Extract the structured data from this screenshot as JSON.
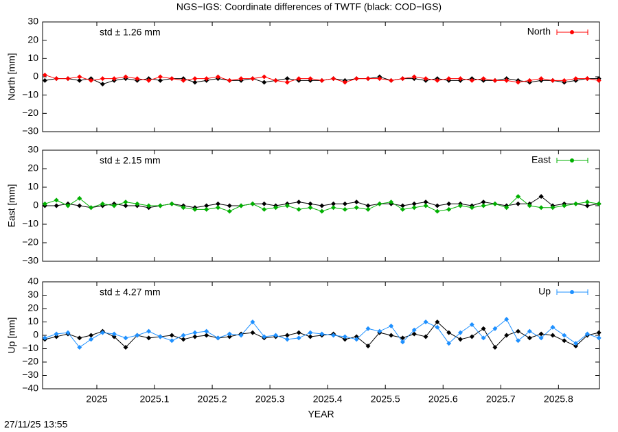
{
  "title": "NGS−IGS: Coordinate differences of TWTF (black: COD−IGS)",
  "timestamp": "27/11/25 13:55",
  "chart_data": [
    {
      "type": "line",
      "ylabel": "North [mm]",
      "annotation": "std ± 1.26 mm",
      "legend": "upper right",
      "show_xticklabels": false,
      "xlim": [
        2024.906,
        2025.871
      ],
      "xticks": [
        2025,
        2025.1,
        2025.2,
        2025.3,
        2025.4,
        2025.5,
        2025.6,
        2025.7,
        2025.8
      ],
      "ylim": [
        -30,
        30
      ],
      "yticks": [
        {
          "value": -30,
          "label": "−30"
        },
        {
          "value": -20,
          "label": "−20"
        },
        {
          "value": -10,
          "label": "−10"
        },
        0,
        10,
        20,
        30
      ],
      "x": [
        2024.91,
        2024.93,
        2024.95,
        2024.97,
        2024.99,
        2025.01,
        2025.03,
        2025.05,
        2025.07,
        2025.09,
        2025.11,
        2025.13,
        2025.15,
        2025.17,
        2025.19,
        2025.21,
        2025.23,
        2025.25,
        2025.27,
        2025.29,
        2025.31,
        2025.33,
        2025.35,
        2025.37,
        2025.39,
        2025.41,
        2025.43,
        2025.45,
        2025.47,
        2025.49,
        2025.51,
        2025.53,
        2025.55,
        2025.57,
        2025.59,
        2025.61,
        2025.63,
        2025.65,
        2025.67,
        2025.69,
        2025.71,
        2025.73,
        2025.75,
        2025.77,
        2025.79,
        2025.81,
        2025.83,
        2025.85,
        2025.87
      ],
      "series": [
        {
          "color": "#000000",
          "marker": "diamond",
          "values": [
            -2,
            -1,
            -1,
            -2,
            -1,
            -4,
            -2,
            -1,
            -2,
            -1,
            -2,
            -1,
            -1,
            -3,
            -2,
            -1,
            -2,
            -2,
            -1,
            -3,
            -2,
            -1,
            -2,
            -2,
            -2,
            -1,
            -2,
            -1,
            -1,
            0,
            -2,
            -1,
            -1,
            -2,
            -1,
            -2,
            -2,
            -1,
            -2,
            -2,
            -1,
            -2,
            -3,
            -2,
            -2,
            -3,
            -2,
            -1,
            -1
          ]
        },
        {
          "name": "North",
          "color": "#ff0000",
          "marker": "diamond",
          "values": [
            1,
            -1,
            -1,
            0,
            -2,
            -1,
            -1,
            0,
            -1,
            -2,
            0,
            -1,
            -2,
            -1,
            -1,
            0,
            -2,
            -1,
            -1,
            0,
            -2,
            -3,
            -1,
            -1,
            -2,
            -1,
            -3,
            -1,
            -1,
            -1,
            -2,
            -1,
            0,
            -1,
            -2,
            -1,
            -1,
            -2,
            -1,
            -2,
            -2,
            -3,
            -2,
            -1,
            -2,
            -2,
            -1,
            -1,
            -2
          ]
        }
      ]
    },
    {
      "type": "line",
      "ylabel": "East [mm]",
      "annotation": "std ± 2.15 mm",
      "legend": "upper right",
      "show_xticklabels": false,
      "xlim": [
        2024.906,
        2025.871
      ],
      "xticks": [
        2025,
        2025.1,
        2025.2,
        2025.3,
        2025.4,
        2025.5,
        2025.6,
        2025.7,
        2025.8
      ],
      "ylim": [
        -30,
        30
      ],
      "yticks": [
        {
          "value": -30,
          "label": "−30"
        },
        {
          "value": -20,
          "label": "−20"
        },
        {
          "value": -10,
          "label": "−10"
        },
        0,
        10,
        20,
        30
      ],
      "x": [
        2024.91,
        2024.93,
        2024.95,
        2024.97,
        2024.99,
        2025.01,
        2025.03,
        2025.05,
        2025.07,
        2025.09,
        2025.11,
        2025.13,
        2025.15,
        2025.17,
        2025.19,
        2025.21,
        2025.23,
        2025.25,
        2025.27,
        2025.29,
        2025.31,
        2025.33,
        2025.35,
        2025.37,
        2025.39,
        2025.41,
        2025.43,
        2025.45,
        2025.47,
        2025.49,
        2025.51,
        2025.53,
        2025.55,
        2025.57,
        2025.59,
        2025.61,
        2025.63,
        2025.65,
        2025.67,
        2025.69,
        2025.71,
        2025.73,
        2025.75,
        2025.77,
        2025.79,
        2025.81,
        2025.83,
        2025.85,
        2025.87
      ],
      "series": [
        {
          "color": "#000000",
          "marker": "diamond",
          "values": [
            0,
            0,
            1,
            0,
            -1,
            0,
            1,
            0,
            0,
            -1,
            0,
            1,
            0,
            -1,
            0,
            1,
            0,
            0,
            1,
            1,
            0,
            1,
            2,
            1,
            0,
            1,
            1,
            2,
            0,
            1,
            1,
            0,
            1,
            2,
            0,
            1,
            1,
            0,
            2,
            1,
            0,
            1,
            1,
            5,
            0,
            1,
            1,
            0,
            1
          ]
        },
        {
          "name": "East",
          "color": "#00b000",
          "marker": "diamond",
          "values": [
            1,
            3,
            0,
            4,
            -1,
            1,
            0,
            2,
            1,
            0,
            0,
            1,
            -1,
            -2,
            -2,
            -1,
            -3,
            0,
            1,
            -2,
            -1,
            0,
            -2,
            -1,
            -3,
            -1,
            -2,
            -1,
            -2,
            1,
            2,
            -2,
            -1,
            0,
            -3,
            -2,
            0,
            -1,
            0,
            1,
            -1,
            5,
            0,
            -1,
            -1,
            0,
            1,
            2,
            1
          ]
        }
      ]
    },
    {
      "type": "line",
      "ylabel": "Up [mm]",
      "annotation": "std ± 4.27 mm",
      "legend": "upper right",
      "show_xticklabels": true,
      "xlabel": "YEAR",
      "xlim": [
        2024.906,
        2025.871
      ],
      "xticks": [
        2025,
        2025.1,
        2025.2,
        2025.3,
        2025.4,
        2025.5,
        2025.6,
        2025.7,
        2025.8
      ],
      "ylim": [
        -40,
        40
      ],
      "yticks": [
        {
          "value": -40,
          "label": "−40"
        },
        {
          "value": -30,
          "label": "−30"
        },
        {
          "value": -20,
          "label": "−20"
        },
        {
          "value": -10,
          "label": "−10"
        },
        0,
        10,
        20,
        30,
        40
      ],
      "x": [
        2024.91,
        2024.93,
        2024.95,
        2024.97,
        2024.99,
        2025.01,
        2025.03,
        2025.05,
        2025.07,
        2025.09,
        2025.11,
        2025.13,
        2025.15,
        2025.17,
        2025.19,
        2025.21,
        2025.23,
        2025.25,
        2025.27,
        2025.29,
        2025.31,
        2025.33,
        2025.35,
        2025.37,
        2025.39,
        2025.41,
        2025.43,
        2025.45,
        2025.47,
        2025.49,
        2025.51,
        2025.53,
        2025.55,
        2025.57,
        2025.59,
        2025.61,
        2025.63,
        2025.65,
        2025.67,
        2025.69,
        2025.71,
        2025.73,
        2025.75,
        2025.77,
        2025.79,
        2025.81,
        2025.83,
        2025.85,
        2025.87
      ],
      "series": [
        {
          "color": "#000000",
          "marker": "diamond",
          "values": [
            -3,
            -1,
            1,
            -2,
            0,
            3,
            -1,
            -9,
            0,
            -2,
            -1,
            0,
            -3,
            -1,
            0,
            -2,
            -1,
            1,
            2,
            -2,
            -1,
            0,
            2,
            -1,
            0,
            1,
            -3,
            -1,
            -8,
            2,
            0,
            -2,
            1,
            -1,
            10,
            2,
            -3,
            -1,
            5,
            -9,
            0,
            3,
            -2,
            1,
            0,
            -4,
            -8,
            0,
            2
          ]
        },
        {
          "name": "Up",
          "color": "#1e90ff",
          "marker": "diamond",
          "values": [
            -2,
            1,
            2,
            -9,
            -3,
            2,
            1,
            -2,
            0,
            3,
            -1,
            -4,
            0,
            2,
            3,
            -2,
            1,
            0,
            10,
            -1,
            0,
            -3,
            -2,
            2,
            1,
            0,
            -1,
            -3,
            5,
            3,
            7,
            -5,
            4,
            10,
            6,
            -6,
            2,
            8,
            -2,
            5,
            12,
            -4,
            3,
            -2,
            6,
            0,
            -6,
            1,
            -2
          ]
        }
      ]
    }
  ]
}
